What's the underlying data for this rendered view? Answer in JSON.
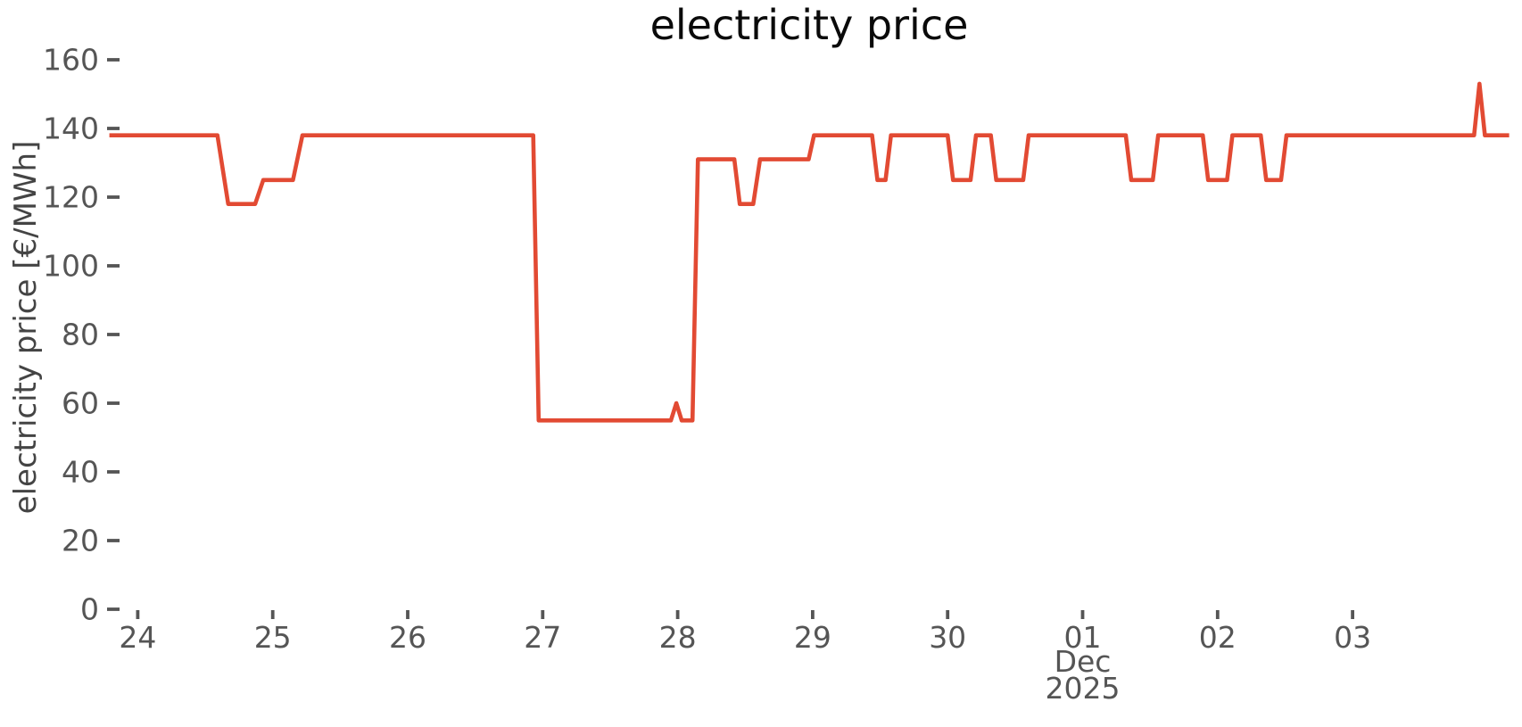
{
  "figure": {
    "title": "electricity price",
    "y_axis_label": "electricity price [€/MWh]",
    "x_axis_month_label": "Dec",
    "x_axis_year_label": "2025"
  },
  "chart_data": {
    "type": "line",
    "title": "electricity price",
    "xlabel": "",
    "ylabel": "electricity price [€/MWh]",
    "x_axis_note": "t in days: 0 = Nov 24, 9 = Dec 03 2025; prices are hourly steps in €/MWh",
    "xlim": [
      -0.21,
      10.16
    ],
    "ylim": [
      0,
      160
    ],
    "grid": false,
    "legend": "none",
    "line_color": "#E24A33",
    "line_width": 4.6,
    "tick_color": "#555555",
    "y_ticks": [
      0,
      20,
      40,
      60,
      80,
      100,
      120,
      140,
      160
    ],
    "x_ticks": [
      {
        "t": 0,
        "label": "24"
      },
      {
        "t": 1,
        "label": "25"
      },
      {
        "t": 2,
        "label": "26"
      },
      {
        "t": 3,
        "label": "27"
      },
      {
        "t": 4,
        "label": "28"
      },
      {
        "t": 5,
        "label": "29"
      },
      {
        "t": 6,
        "label": "30"
      },
      {
        "t": 7,
        "label": "01"
      },
      {
        "t": 8,
        "label": "02"
      },
      {
        "t": 9,
        "label": "03"
      }
    ],
    "x_secondary_tick": {
      "t": 7,
      "labels": [
        "Dec",
        "2025"
      ]
    },
    "series": [
      {
        "name": "electricity price",
        "unit": "€/MWh",
        "key_levels": [
          138,
          131,
          125,
          118,
          60,
          55,
          153
        ],
        "points": [
          [
            -0.21,
            138
          ],
          [
            0.59,
            138
          ],
          [
            0.67,
            118
          ],
          [
            0.87,
            118
          ],
          [
            0.93,
            125
          ],
          [
            1.15,
            125
          ],
          [
            1.22,
            138
          ],
          [
            2.93,
            138
          ],
          [
            2.97,
            55
          ],
          [
            3.95,
            55
          ],
          [
            3.99,
            60
          ],
          [
            4.03,
            55
          ],
          [
            4.11,
            55
          ],
          [
            4.15,
            131
          ],
          [
            4.42,
            131
          ],
          [
            4.46,
            118
          ],
          [
            4.56,
            118
          ],
          [
            4.61,
            131
          ],
          [
            4.97,
            131
          ],
          [
            5.01,
            138
          ],
          [
            5.44,
            138
          ],
          [
            5.48,
            125
          ],
          [
            5.54,
            125
          ],
          [
            5.58,
            138
          ],
          [
            6.0,
            138
          ],
          [
            6.04,
            125
          ],
          [
            6.17,
            125
          ],
          [
            6.21,
            138
          ],
          [
            6.32,
            138
          ],
          [
            6.36,
            125
          ],
          [
            6.56,
            125
          ],
          [
            6.6,
            138
          ],
          [
            7.32,
            138
          ],
          [
            7.36,
            125
          ],
          [
            7.52,
            125
          ],
          [
            7.56,
            138
          ],
          [
            7.89,
            138
          ],
          [
            7.93,
            125
          ],
          [
            8.07,
            125
          ],
          [
            8.11,
            138
          ],
          [
            8.32,
            138
          ],
          [
            8.36,
            125
          ],
          [
            8.47,
            125
          ],
          [
            8.51,
            138
          ],
          [
            9.9,
            138
          ],
          [
            9.94,
            153
          ],
          [
            9.98,
            138
          ],
          [
            10.16,
            138
          ]
        ]
      }
    ]
  }
}
